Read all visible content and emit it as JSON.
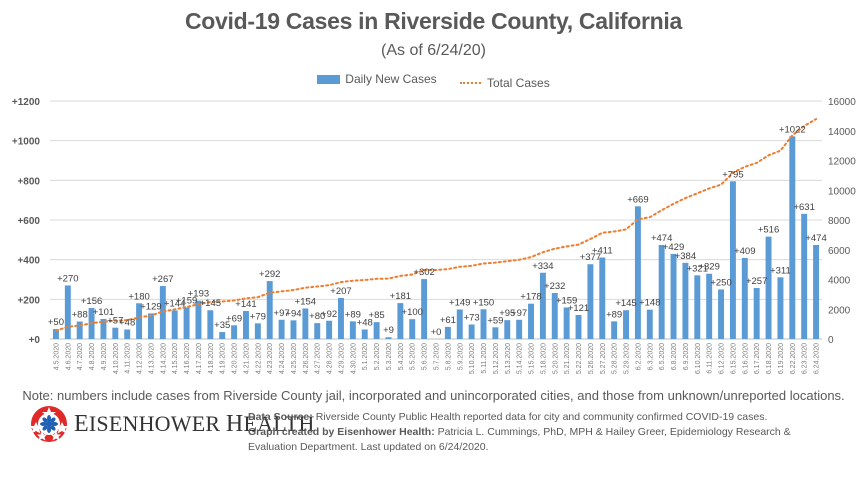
{
  "chart_data": {
    "type": "bar+line",
    "title": "Covid-19 Cases in Riverside County, California",
    "subtitle": "(As of 6/24/20)",
    "legend": {
      "placement": "top-center",
      "entries": [
        "Daily New Cases",
        "Total Cases"
      ]
    },
    "colors": {
      "bars": "#5b9bd5",
      "line": "#ed7d31",
      "grid": "#d9d9d9",
      "text": "#595959"
    },
    "y_left": {
      "ticks": [
        "+0",
        "+200",
        "+400",
        "+600",
        "+800",
        "+1000",
        "+1200"
      ],
      "range": [
        0,
        1200
      ]
    },
    "y_right": {
      "ticks": [
        "0",
        "2000",
        "4000",
        "6000",
        "8000",
        "10000",
        "12000",
        "14000",
        "16000"
      ],
      "range": [
        0,
        16000
      ]
    },
    "grid": true,
    "categories": [
      "4.5.2020",
      "4.6.2020",
      "4.7.2020",
      "4.8.2020",
      "4.9.2020",
      "4.10.2020",
      "4.11.2020",
      "4.12.2020",
      "4.13.2020",
      "4.14.2020",
      "4.15.2020",
      "4.16.2020",
      "4.17.2020",
      "4.18.2020",
      "4.19.2020",
      "4.20.2020",
      "4.21.2020",
      "4.22.2020",
      "4.23.2020",
      "4.24.2020",
      "4.25.2020",
      "4.26.2020",
      "4.27.2020",
      "4.28.2020",
      "4.29.2020",
      "4.30.2020",
      "5.1.2020",
      "5.2.2020",
      "5.3.2020",
      "5.4.2020",
      "5.5.2020",
      "5.6.2020",
      "5.7.2020",
      "5.8.2020",
      "5.9.2020",
      "5.10.2020",
      "5.11.2020",
      "5.12.2020",
      "5.13.2020",
      "5.14.2020",
      "5.15.2020",
      "5.18.2020",
      "5.20.2020",
      "5.21.2020",
      "5.22.2020",
      "5.26.2020",
      "5.27.2020",
      "5.28.2020",
      "5.29.2020",
      "6.2.2020",
      "6.3.2020",
      "6.5.2020",
      "6.8.2020",
      "6.9.2020",
      "6.10.2020",
      "6.11.2020",
      "6.12.2020",
      "6.15.2020",
      "6.16.2020",
      "6.17.2020",
      "6.18.2020",
      "6.19.2020",
      "6.22.2020",
      "6.23.2020",
      "6.24.2020"
    ],
    "series": [
      {
        "name": "Daily New Cases",
        "type": "bar",
        "axis": "left",
        "values": [
          50,
          270,
          88,
          156,
          101,
          57,
          48,
          180,
          129,
          267,
          144,
          159,
          193,
          145,
          35,
          69,
          141,
          79,
          292,
          97,
          94,
          154,
          80,
          92,
          207,
          89,
          48,
          85,
          9,
          181,
          100,
          302,
          0,
          61,
          149,
          73,
          150,
          59,
          95,
          97,
          178,
          334,
          232,
          159,
          121,
          377,
          411,
          89,
          145,
          669,
          148,
          474,
          429,
          384,
          321,
          329,
          250,
          795,
          409,
          257,
          516,
          311,
          1022,
          631,
          474
        ]
      },
      {
        "name": "Total Cases",
        "type": "line",
        "axis": "right",
        "style": "dotted",
        "values": [
          550,
          820,
          908,
          1064,
          1165,
          1222,
          1270,
          1450,
          1579,
          1846,
          1990,
          2149,
          2342,
          2487,
          2522,
          2591,
          2732,
          2811,
          3103,
          3200,
          3294,
          3448,
          3528,
          3620,
          3827,
          3916,
          3964,
          4049,
          4058,
          4239,
          4339,
          4641,
          4641,
          4702,
          4851,
          4924,
          5074,
          5133,
          5228,
          5325,
          5503,
          5837,
          6069,
          6228,
          6349,
          6726,
          7137,
          7226,
          7371,
          8040,
          8188,
          8662,
          9091,
          9475,
          9796,
          10125,
          10375,
          11170,
          11579,
          11836,
          12352,
          12663,
          13685,
          14316,
          14790
        ]
      }
    ]
  },
  "footer": {
    "note": "Note: numbers include cases from Riverside County jail, incorporated and unincorporated cities, and those from unknown/unreported locations.",
    "logo_name": "Eisenhower Health",
    "logo_first_big": "E",
    "logo_first_rest": "ISENHOWER",
    "logo_second_big": "H",
    "logo_second_rest": "EALTH",
    "source_label": "Data Source:",
    "source_text": " Riverside County Public Health reported data for city and community confirmed COVID-19 cases.",
    "created_label": "Graph created by Eisenhower Health:",
    "created_text": " Patricia L. Cummings, PhD, MPH & Hailey Greer, Epidemiology Research & Evaluation Department. Last updated on 6/24/2020."
  }
}
